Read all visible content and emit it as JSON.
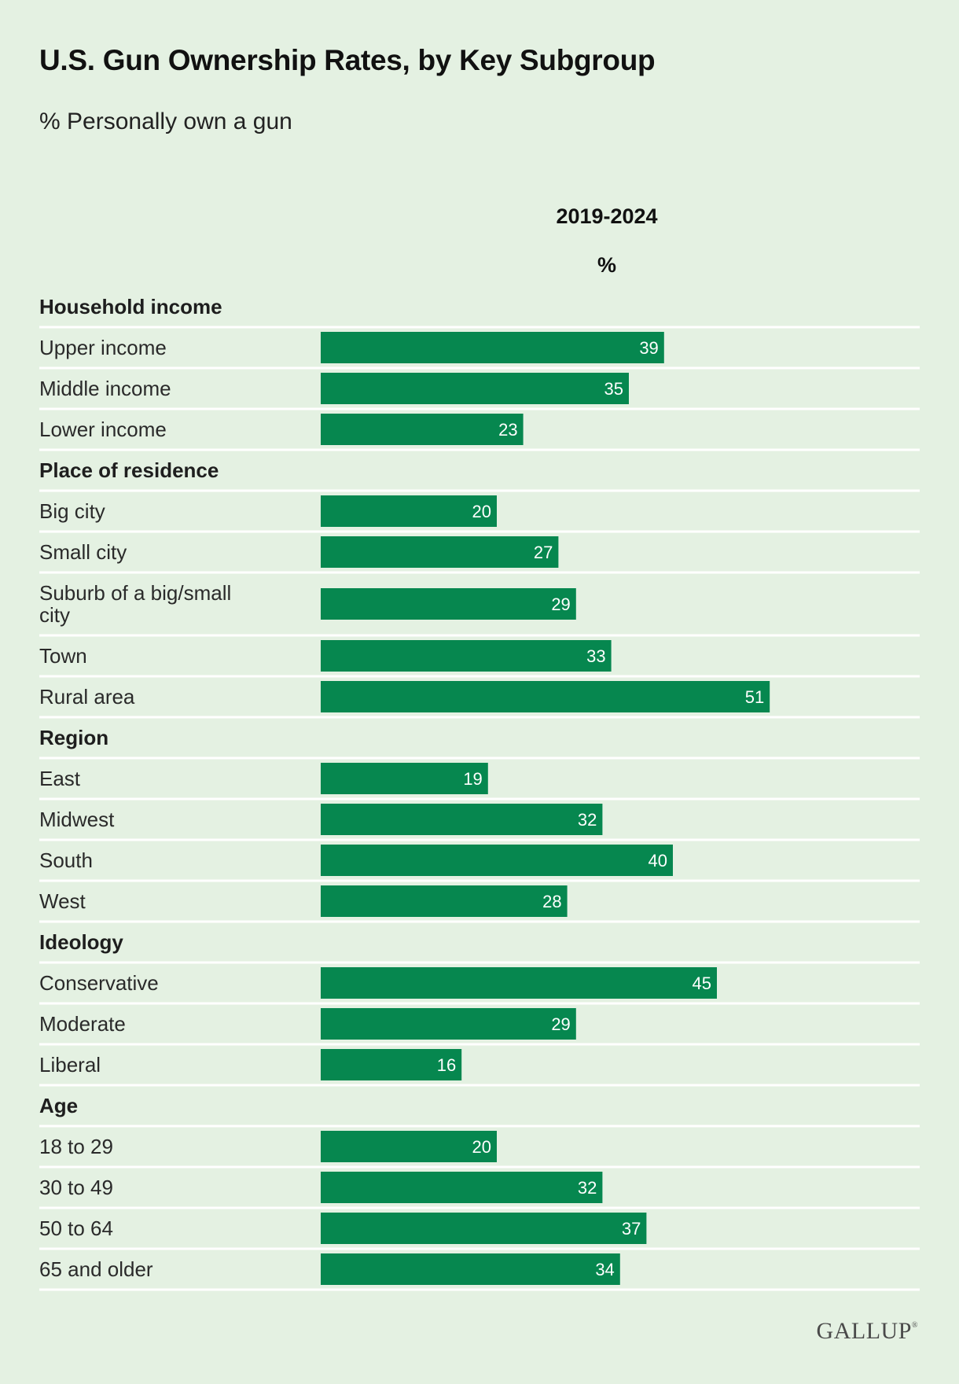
{
  "title": "U.S. Gun Ownership Rates, by Key Subgroup",
  "subtitle": "% Personally own a gun",
  "column_header": {
    "period": "2019-2024",
    "unit": "%"
  },
  "brand": "GALLUP",
  "colors": {
    "bar": "#06874f",
    "background": "#e4f1e2",
    "divider": "#ffffff"
  },
  "chart_data": {
    "type": "bar",
    "orientation": "horizontal",
    "title": "U.S. Gun Ownership Rates, by Key Subgroup",
    "subtitle": "% Personally own a gun",
    "series_name": "2019-2024",
    "unit": "%",
    "xlim": [
      0,
      100
    ],
    "groups": [
      {
        "name": "Household income",
        "items": [
          {
            "label": "Upper income",
            "value": 39
          },
          {
            "label": "Middle income",
            "value": 35
          },
          {
            "label": "Lower income",
            "value": 23
          }
        ]
      },
      {
        "name": "Place of residence",
        "items": [
          {
            "label": "Big city",
            "value": 20
          },
          {
            "label": "Small city",
            "value": 27
          },
          {
            "label": "Suburb of a big/small city",
            "label_lines": [
              "Suburb of a big/small",
              "city"
            ],
            "value": 29
          },
          {
            "label": "Town",
            "value": 33
          },
          {
            "label": "Rural area",
            "value": 51
          }
        ]
      },
      {
        "name": "Region",
        "items": [
          {
            "label": "East",
            "value": 19
          },
          {
            "label": "Midwest",
            "value": 32
          },
          {
            "label": "South",
            "value": 40
          },
          {
            "label": "West",
            "value": 28
          }
        ]
      },
      {
        "name": "Ideology",
        "items": [
          {
            "label": "Conservative",
            "value": 45
          },
          {
            "label": "Moderate",
            "value": 29
          },
          {
            "label": "Liberal",
            "value": 16
          }
        ]
      },
      {
        "name": "Age",
        "items": [
          {
            "label": "18 to 29",
            "value": 20
          },
          {
            "label": "30 to 49",
            "value": 32
          },
          {
            "label": "50 to 64",
            "value": 37
          },
          {
            "label": "65 and older",
            "value": 34
          }
        ]
      }
    ]
  }
}
